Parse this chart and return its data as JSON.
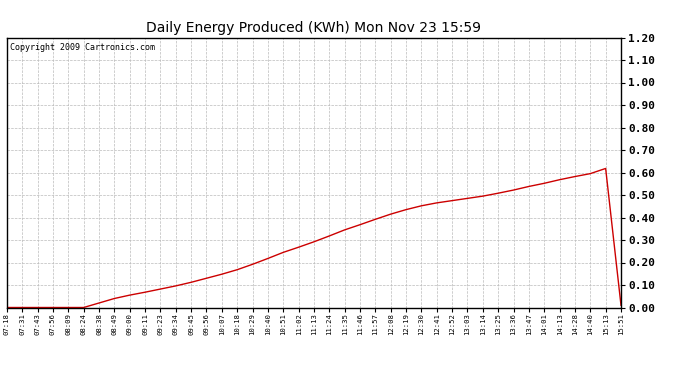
{
  "title": "Daily Energy Produced (KWh) Mon Nov 23 15:59",
  "copyright_text": "Copyright 2009 Cartronics.com",
  "line_color": "#cc0000",
  "background_color": "#ffffff",
  "plot_bg_color": "#ffffff",
  "grid_color": "#bbbbbb",
  "ylim": [
    0.0,
    1.2
  ],
  "yticks": [
    0.0,
    0.1,
    0.2,
    0.3,
    0.4,
    0.5,
    0.6,
    0.7,
    0.8,
    0.9,
    1.0,
    1.1,
    1.2
  ],
  "xtick_labels": [
    "07:18",
    "07:31",
    "07:43",
    "07:56",
    "08:09",
    "08:24",
    "08:38",
    "08:49",
    "09:00",
    "09:11",
    "09:23",
    "09:34",
    "09:45",
    "09:56",
    "10:07",
    "10:18",
    "10:29",
    "10:40",
    "10:51",
    "11:02",
    "11:13",
    "11:24",
    "11:35",
    "11:46",
    "11:57",
    "12:08",
    "12:19",
    "12:30",
    "12:41",
    "12:52",
    "13:03",
    "13:14",
    "13:25",
    "13:36",
    "13:47",
    "14:01",
    "14:13",
    "14:28",
    "14:40",
    "15:13",
    "15:51"
  ],
  "y_values": [
    0.0,
    0.0,
    0.0,
    0.0,
    0.0,
    0.0,
    0.02,
    0.04,
    0.055,
    0.068,
    0.082,
    0.096,
    0.112,
    0.13,
    0.148,
    0.168,
    0.192,
    0.218,
    0.245,
    0.268,
    0.292,
    0.318,
    0.345,
    0.368,
    0.392,
    0.415,
    0.435,
    0.452,
    0.465,
    0.475,
    0.485,
    0.495,
    0.508,
    0.522,
    0.538,
    0.552,
    0.568,
    0.582,
    0.595,
    0.618,
    0.01
  ],
  "figwidth": 6.9,
  "figheight": 3.75,
  "dpi": 100
}
